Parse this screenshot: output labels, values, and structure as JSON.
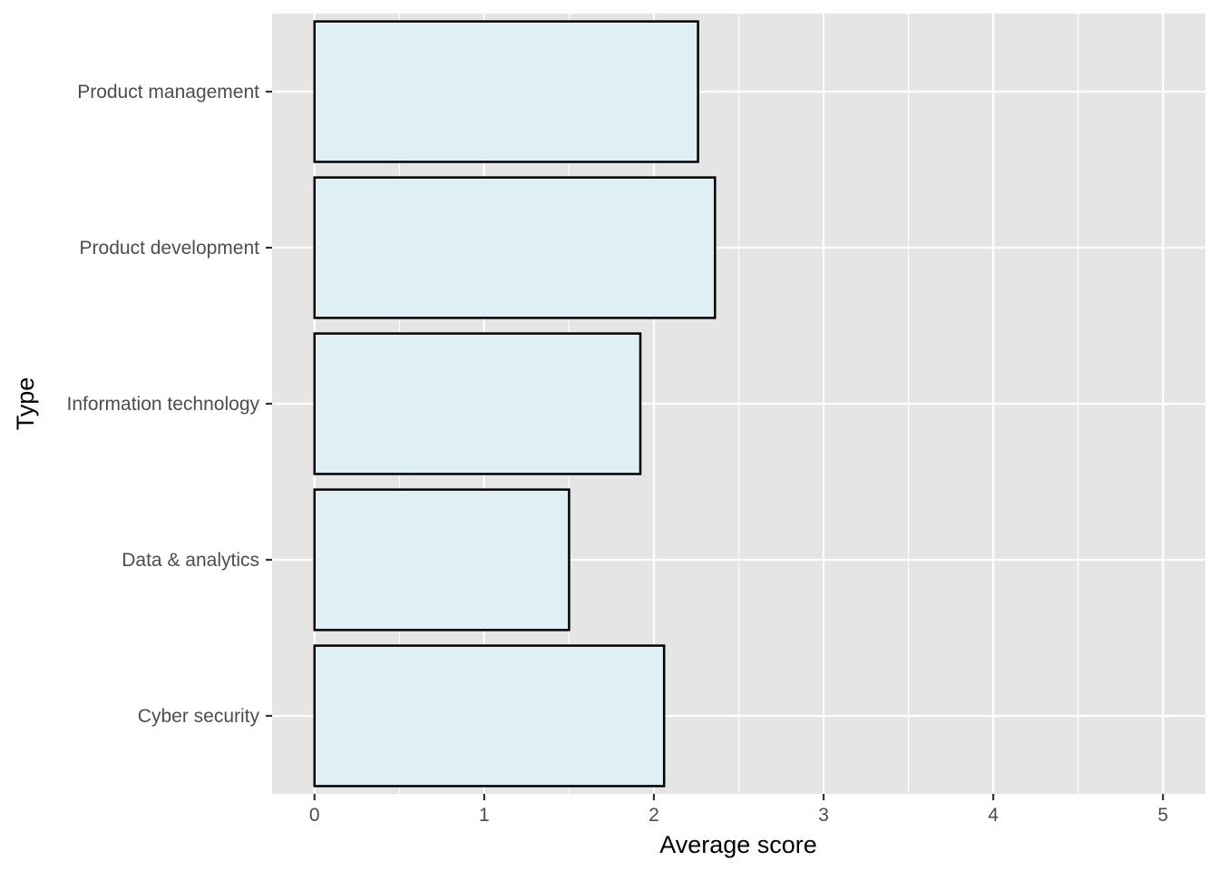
{
  "chart_data": {
    "type": "bar",
    "orientation": "horizontal",
    "categories": [
      "Product management",
      "Product development",
      "Information technology",
      "Data & analytics",
      "Cyber security"
    ],
    "values": [
      2.26,
      2.36,
      1.92,
      1.5,
      2.06
    ],
    "xlabel": "Average score",
    "ylabel": "Type",
    "xlim": [
      -0.25,
      5.25
    ],
    "x_ticks": [
      "0",
      "1",
      "2",
      "3",
      "4",
      "5"
    ],
    "grid": true,
    "legend": "none",
    "colors": {
      "panel_background": "#e5e5e5",
      "grid_line": "#ffffff",
      "bar_fill": "#dff0f4",
      "bar_outline": "#000000",
      "tick_label": "#4d4d4d",
      "tick_mark": "#333333"
    }
  }
}
